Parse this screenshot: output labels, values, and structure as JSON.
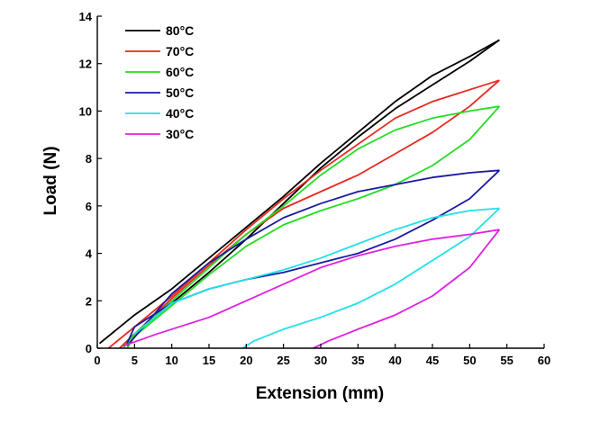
{
  "chart_data": {
    "type": "line",
    "xlabel": "Extension (mm)",
    "ylabel": "Load (N)",
    "xlim": [
      0,
      60
    ],
    "ylim": [
      0,
      14
    ],
    "xticks": [
      0,
      5,
      10,
      15,
      20,
      25,
      30,
      35,
      40,
      45,
      50,
      55,
      60
    ],
    "yticks": [
      0,
      2,
      4,
      6,
      8,
      10,
      12,
      14
    ],
    "grid": false,
    "legend_position": "top-left",
    "series": [
      {
        "name": "80°C",
        "color": "#000000",
        "loading": [
          [
            0.3,
            0.2
          ],
          [
            5,
            1.4
          ],
          [
            10,
            2.5
          ],
          [
            15,
            3.8
          ],
          [
            20,
            5.1
          ],
          [
            25,
            6.4
          ],
          [
            30,
            7.8
          ],
          [
            35,
            9.1
          ],
          [
            40,
            10.4
          ],
          [
            45,
            11.5
          ],
          [
            50,
            12.3
          ],
          [
            54,
            13.0
          ]
        ],
        "unloading": [
          [
            54,
            13.0
          ],
          [
            50,
            12.1
          ],
          [
            45,
            11.1
          ],
          [
            40,
            10.1
          ],
          [
            35,
            8.9
          ],
          [
            30,
            7.6
          ],
          [
            25,
            6.1
          ],
          [
            20,
            4.6
          ],
          [
            15,
            3.2
          ],
          [
            10,
            1.9
          ],
          [
            5,
            0.6
          ],
          [
            3,
            0.0
          ]
        ]
      },
      {
        "name": "70°C",
        "color": "#e8281e",
        "loading": [
          [
            1.5,
            0.0
          ],
          [
            5,
            0.9
          ],
          [
            10,
            2.2
          ],
          [
            15,
            3.6
          ],
          [
            20,
            5.0
          ],
          [
            25,
            6.3
          ],
          [
            30,
            7.5
          ],
          [
            35,
            8.6
          ],
          [
            40,
            9.7
          ],
          [
            45,
            10.4
          ],
          [
            50,
            10.9
          ],
          [
            54,
            11.3
          ]
        ],
        "unloading": [
          [
            54,
            11.3
          ],
          [
            50,
            10.2
          ],
          [
            45,
            9.1
          ],
          [
            40,
            8.2
          ],
          [
            35,
            7.3
          ],
          [
            30,
            6.6
          ],
          [
            25,
            5.9
          ],
          [
            20,
            4.8
          ],
          [
            15,
            3.5
          ],
          [
            10,
            2.1
          ],
          [
            5,
            0.6
          ],
          [
            3,
            0.0
          ]
        ]
      },
      {
        "name": "60°C",
        "color": "#22dd22",
        "loading": [
          [
            3.5,
            0.0
          ],
          [
            5,
            0.6
          ],
          [
            10,
            2.0
          ],
          [
            15,
            3.4
          ],
          [
            20,
            4.8
          ],
          [
            25,
            6.0
          ],
          [
            30,
            7.3
          ],
          [
            35,
            8.4
          ],
          [
            40,
            9.2
          ],
          [
            45,
            9.7
          ],
          [
            50,
            10.0
          ],
          [
            54,
            10.2
          ]
        ],
        "unloading": [
          [
            54,
            10.2
          ],
          [
            50,
            8.8
          ],
          [
            45,
            7.7
          ],
          [
            40,
            6.9
          ],
          [
            35,
            6.3
          ],
          [
            30,
            5.8
          ],
          [
            25,
            5.2
          ],
          [
            20,
            4.3
          ],
          [
            15,
            3.1
          ],
          [
            10,
            1.8
          ],
          [
            5,
            0.5
          ],
          [
            4,
            0.0
          ]
        ]
      },
      {
        "name": "50°C",
        "color": "#1a1aa0",
        "loading": [
          [
            4,
            0.1
          ],
          [
            10,
            2.3
          ],
          [
            15,
            3.6
          ],
          [
            20,
            4.6
          ],
          [
            25,
            5.5
          ],
          [
            30,
            6.1
          ],
          [
            35,
            6.6
          ],
          [
            40,
            6.9
          ],
          [
            45,
            7.2
          ],
          [
            50,
            7.4
          ],
          [
            54,
            7.5
          ]
        ],
        "unloading": [
          [
            54,
            7.5
          ],
          [
            50,
            6.3
          ],
          [
            45,
            5.4
          ],
          [
            40,
            4.6
          ],
          [
            35,
            4.0
          ],
          [
            30,
            3.6
          ],
          [
            25,
            3.2
          ],
          [
            20,
            2.9
          ],
          [
            15,
            2.5
          ],
          [
            10,
            1.9
          ],
          [
            5,
            0.9
          ],
          [
            4,
            0.2
          ]
        ]
      },
      {
        "name": "40°C",
        "color": "#22e0e8",
        "loading": [
          [
            5,
            0.6
          ],
          [
            10,
            1.9
          ],
          [
            15,
            2.5
          ],
          [
            20,
            2.9
          ],
          [
            25,
            3.3
          ],
          [
            30,
            3.8
          ],
          [
            35,
            4.4
          ],
          [
            40,
            5.0
          ],
          [
            45,
            5.5
          ],
          [
            50,
            5.8
          ],
          [
            54,
            5.9
          ]
        ],
        "unloading": [
          [
            54,
            5.9
          ],
          [
            50,
            4.7
          ],
          [
            45,
            3.7
          ],
          [
            40,
            2.7
          ],
          [
            35,
            1.9
          ],
          [
            30,
            1.3
          ],
          [
            25,
            0.8
          ],
          [
            21,
            0.3
          ],
          [
            19.5,
            0.0
          ]
        ]
      },
      {
        "name": "30°C",
        "color": "#e020e0",
        "loading": [
          [
            3.5,
            0.1
          ],
          [
            8,
            0.6
          ],
          [
            15,
            1.3
          ],
          [
            20,
            2.0
          ],
          [
            25,
            2.7
          ],
          [
            30,
            3.4
          ],
          [
            35,
            3.9
          ],
          [
            40,
            4.3
          ],
          [
            45,
            4.6
          ],
          [
            50,
            4.8
          ],
          [
            54,
            5.0
          ]
        ],
        "unloading": [
          [
            54,
            5.0
          ],
          [
            50,
            3.4
          ],
          [
            45,
            2.2
          ],
          [
            40,
            1.4
          ],
          [
            35,
            0.8
          ],
          [
            31,
            0.3
          ],
          [
            29,
            0.0
          ]
        ]
      }
    ]
  }
}
